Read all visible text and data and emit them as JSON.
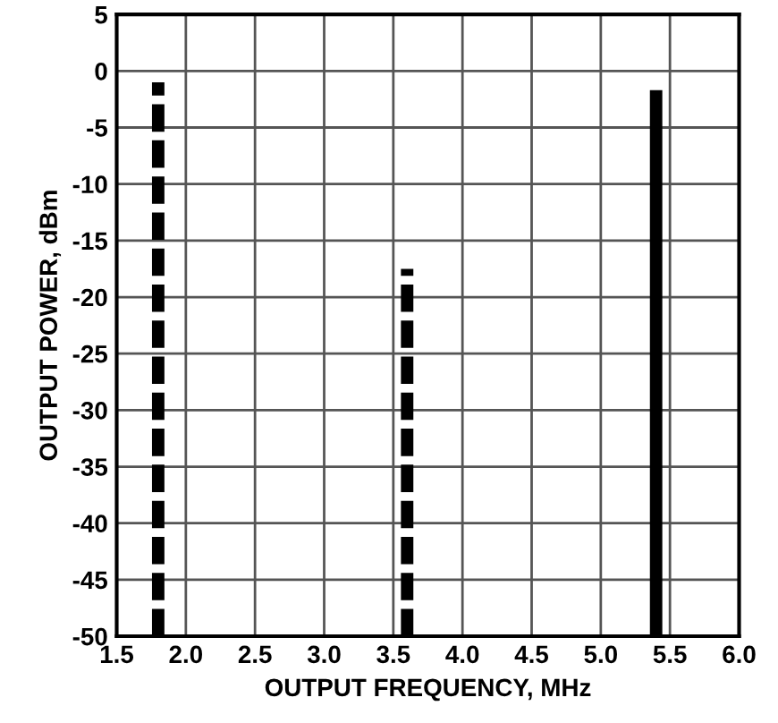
{
  "chart_data": {
    "type": "line",
    "xlabel": "OUTPUT FREQUENCY, MHz",
    "ylabel": "OUTPUT POWER, dBm",
    "xlim": [
      1.5,
      6.0
    ],
    "xticks": [
      1.5,
      {
        "value": 2,
        "label": "2.0"
      },
      2.5,
      {
        "value": 3,
        "label": "3.0"
      },
      3.5,
      {
        "value": 4,
        "label": "4.0"
      },
      4.5,
      {
        "value": 5,
        "label": "5.0"
      },
      5.5,
      {
        "value": 6,
        "label": "6.0"
      }
    ],
    "ylim": [
      -50,
      5
    ],
    "yticks": [
      -50,
      -45,
      -40,
      -35,
      -30,
      -25,
      -20,
      -15,
      -10,
      -5,
      0,
      5
    ],
    "grid": true,
    "marker": "none",
    "series": [
      {
        "x": [
          1.8,
          1.8
        ],
        "values": [
          -50,
          -1
        ],
        "color": "#000000",
        "line_style": "dashed"
      },
      {
        "x": [
          3.6,
          3.6
        ],
        "values": [
          -50,
          -17.5
        ],
        "color": "#000000",
        "line_style": "dashed"
      },
      {
        "x": [
          5.4,
          5.4
        ],
        "values": [
          -50,
          -1.7
        ],
        "color": "#000000",
        "line_style": "solid"
      }
    ]
  }
}
